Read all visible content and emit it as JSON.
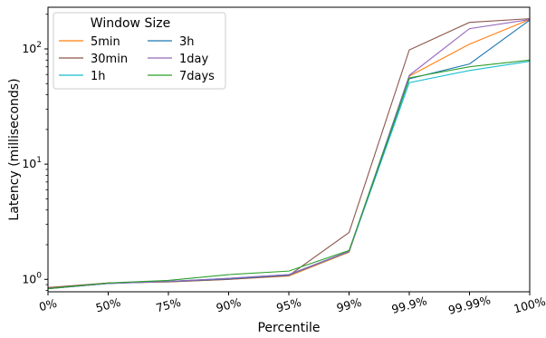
{
  "chart_data": {
    "type": "line",
    "title": "",
    "xlabel": "Percentile",
    "ylabel": "Latency (milliseconds)",
    "yscale": "log",
    "ylim": [
      0.78,
      230
    ],
    "x_categories": [
      "0%",
      "50%",
      "75%",
      "90%",
      "95%",
      "99%",
      "99.9%",
      "99.99%",
      "100%"
    ],
    "y_ticks": [
      {
        "value": 1,
        "base": "10",
        "exp": "0"
      },
      {
        "value": 10,
        "base": "10",
        "exp": "1"
      },
      {
        "value": 100,
        "base": "10",
        "exp": "2"
      }
    ],
    "grid": false,
    "legend": {
      "title": "Window Size",
      "placement": "top-left",
      "columns": 2
    },
    "series": [
      {
        "name": "5min",
        "color": "#ff7f0e",
        "values": [
          0.84,
          0.93,
          0.95,
          1.0,
          1.07,
          1.72,
          58,
          110,
          180
        ]
      },
      {
        "name": "30min",
        "color": "#8c564b",
        "values": [
          0.85,
          0.93,
          0.95,
          1.0,
          1.08,
          2.55,
          98,
          170,
          183
        ]
      },
      {
        "name": "1h",
        "color": "#17becf",
        "values": [
          0.83,
          0.92,
          0.96,
          1.02,
          1.1,
          1.75,
          51,
          65,
          78
        ]
      },
      {
        "name": "3h",
        "color": "#1f77b4",
        "values": [
          0.83,
          0.92,
          0.96,
          1.01,
          1.09,
          1.74,
          55,
          74,
          178
        ]
      },
      {
        "name": "1day",
        "color": "#9467bd",
        "values": [
          0.83,
          0.92,
          0.96,
          1.02,
          1.1,
          1.75,
          59,
          150,
          180
        ]
      },
      {
        "name": "7days",
        "color": "#2ca02c",
        "values": [
          0.83,
          0.93,
          0.98,
          1.1,
          1.18,
          1.78,
          56,
          70,
          80
        ]
      }
    ]
  }
}
